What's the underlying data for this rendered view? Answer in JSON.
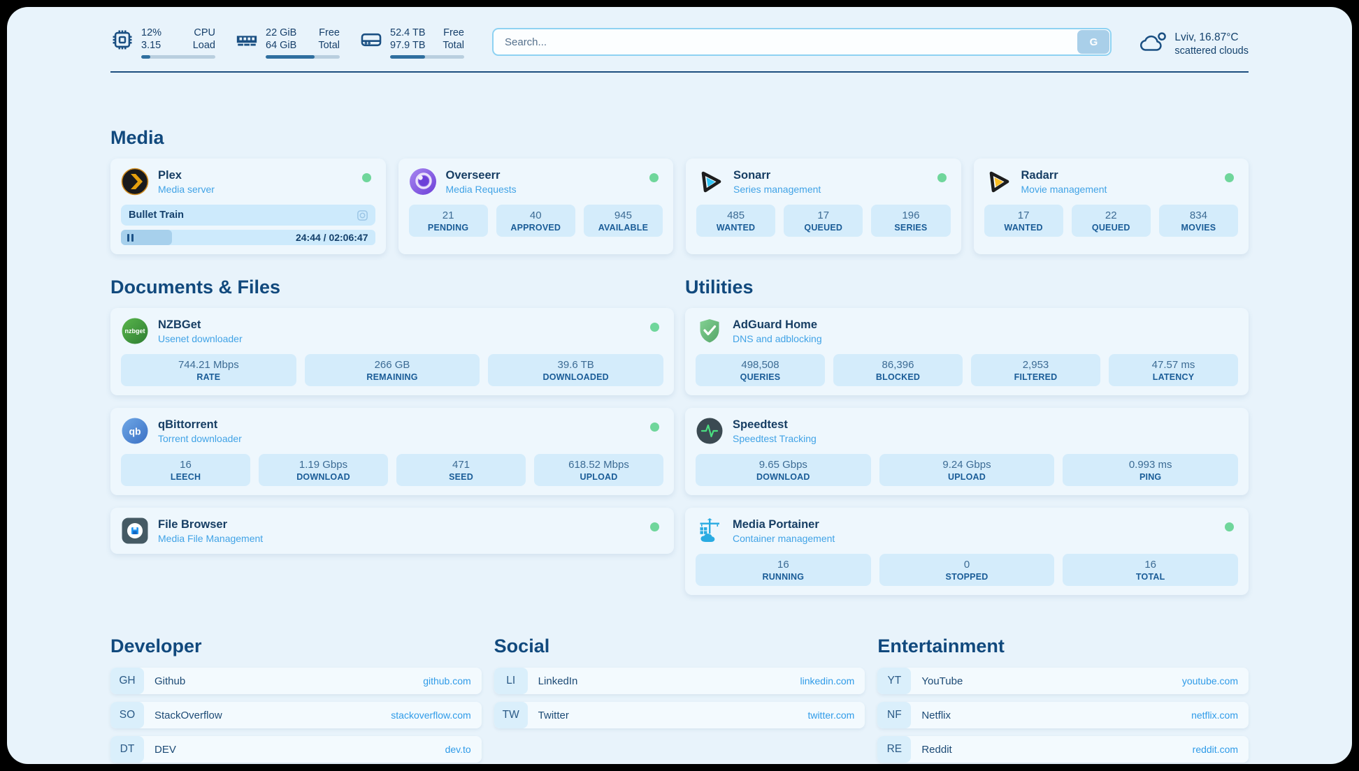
{
  "topbar": {
    "resources": [
      {
        "icon": "cpu-icon",
        "rows": [
          {
            "value": "12%",
            "label": "CPU"
          },
          {
            "value": "3.15",
            "label": "Load"
          }
        ],
        "progress": "12%"
      },
      {
        "icon": "memory-icon",
        "rows": [
          {
            "value": "22 GiB",
            "label": "Free"
          },
          {
            "value": "64 GiB",
            "label": "Total"
          }
        ],
        "progress": "66%"
      },
      {
        "icon": "disk-icon",
        "rows": [
          {
            "value": "52.4 TB",
            "label": "Free"
          },
          {
            "value": "97.9 TB",
            "label": "Total"
          }
        ],
        "progress": "47%"
      }
    ],
    "search": {
      "placeholder": "Search...",
      "button_label": "G"
    },
    "weather": {
      "location_temp": "Lviv, 16.87°C",
      "condition": "scattered clouds"
    }
  },
  "sections": {
    "media": {
      "title": "Media",
      "cards": [
        {
          "name": "Plex",
          "subtitle": "Media server",
          "now_playing": {
            "title": "Bullet Train",
            "time": "24:44 / 02:06:47",
            "progress": "20%"
          }
        },
        {
          "name": "Overseerr",
          "subtitle": "Media Requests",
          "stats": [
            {
              "value": "21",
              "label": "PENDING"
            },
            {
              "value": "40",
              "label": "APPROVED"
            },
            {
              "value": "945",
              "label": "AVAILABLE"
            }
          ]
        },
        {
          "name": "Sonarr",
          "subtitle": "Series management",
          "stats": [
            {
              "value": "485",
              "label": "WANTED"
            },
            {
              "value": "17",
              "label": "QUEUED"
            },
            {
              "value": "196",
              "label": "SERIES"
            }
          ]
        },
        {
          "name": "Radarr",
          "subtitle": "Movie management",
          "stats": [
            {
              "value": "17",
              "label": "WANTED"
            },
            {
              "value": "22",
              "label": "QUEUED"
            },
            {
              "value": "834",
              "label": "MOVIES"
            }
          ]
        }
      ]
    },
    "documents": {
      "title": "Documents & Files",
      "cards": [
        {
          "name": "NZBGet",
          "subtitle": "Usenet downloader",
          "stats": [
            {
              "value": "744.21 Mbps",
              "label": "RATE"
            },
            {
              "value": "266 GB",
              "label": "REMAINING"
            },
            {
              "value": "39.6 TB",
              "label": "DOWNLOADED"
            }
          ]
        },
        {
          "name": "qBittorrent",
          "subtitle": "Torrent downloader",
          "stats": [
            {
              "value": "16",
              "label": "LEECH"
            },
            {
              "value": "1.19 Gbps",
              "label": "DOWNLOAD"
            },
            {
              "value": "471",
              "label": "SEED"
            },
            {
              "value": "618.52 Mbps",
              "label": "UPLOAD"
            }
          ]
        },
        {
          "name": "File Browser",
          "subtitle": "Media File Management"
        }
      ]
    },
    "utilities": {
      "title": "Utilities",
      "cards": [
        {
          "name": "AdGuard Home",
          "subtitle": "DNS and adblocking",
          "stats": [
            {
              "value": "498,508",
              "label": "QUERIES"
            },
            {
              "value": "86,396",
              "label": "BLOCKED"
            },
            {
              "value": "2,953",
              "label": "FILTERED"
            },
            {
              "value": "47.57 ms",
              "label": "LATENCY"
            }
          ]
        },
        {
          "name": "Speedtest",
          "subtitle": "Speedtest Tracking",
          "stats": [
            {
              "value": "9.65 Gbps",
              "label": "DOWNLOAD"
            },
            {
              "value": "9.24 Gbps",
              "label": "UPLOAD"
            },
            {
              "value": "0.993 ms",
              "label": "PING"
            }
          ]
        },
        {
          "name": "Media Portainer",
          "subtitle": "Container management",
          "stats": [
            {
              "value": "16",
              "label": "RUNNING"
            },
            {
              "value": "0",
              "label": "STOPPED"
            },
            {
              "value": "16",
              "label": "TOTAL"
            }
          ]
        }
      ]
    },
    "developer": {
      "title": "Developer",
      "bookmarks": [
        {
          "abbr": "GH",
          "name": "Github",
          "url": "github.com"
        },
        {
          "abbr": "SO",
          "name": "StackOverflow",
          "url": "stackoverflow.com"
        },
        {
          "abbr": "DT",
          "name": "DEV",
          "url": "dev.to"
        }
      ]
    },
    "social": {
      "title": "Social",
      "bookmarks": [
        {
          "abbr": "LI",
          "name": "LinkedIn",
          "url": "linkedin.com"
        },
        {
          "abbr": "TW",
          "name": "Twitter",
          "url": "twitter.com"
        }
      ]
    },
    "entertainment": {
      "title": "Entertainment",
      "bookmarks": [
        {
          "abbr": "YT",
          "name": "YouTube",
          "url": "youtube.com"
        },
        {
          "abbr": "NF",
          "name": "Netflix",
          "url": "netflix.com"
        },
        {
          "abbr": "RE",
          "name": "Reddit",
          "url": "reddit.com"
        }
      ]
    }
  },
  "colors": {
    "status_online": "#6fd69b",
    "accent": "#2f9be8",
    "heading": "#11497d"
  }
}
